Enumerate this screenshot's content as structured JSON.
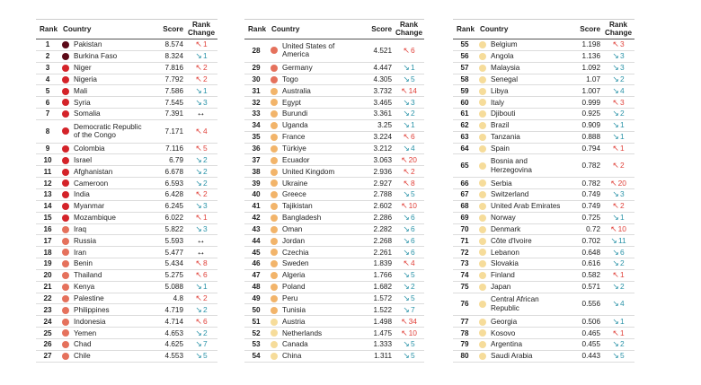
{
  "headers": {
    "rank": "Rank",
    "country": "Country",
    "score": "Score",
    "change_line1": "Rank",
    "change_line2": "Change"
  },
  "colors": {
    "c1": "#5c0a18",
    "c2": "#d42329",
    "c3": "#e5715c",
    "c4": "#f2b46a",
    "c5": "#f6dc9a",
    "up": "#e0423b",
    "down": "#2a93a8"
  },
  "columns": [
    [
      {
        "rank": "1",
        "country": "Pakistan",
        "score": "8.574",
        "dir": "up",
        "change": "1",
        "color": "#5c0a18"
      },
      {
        "rank": "2",
        "country": "Burkina Faso",
        "score": "8.324",
        "dir": "down",
        "change": "1",
        "color": "#5c0a18"
      },
      {
        "rank": "3",
        "country": "Niger",
        "score": "7.816",
        "dir": "up",
        "change": "2",
        "color": "#d42329"
      },
      {
        "rank": "4",
        "country": "Nigeria",
        "score": "7.792",
        "dir": "up",
        "change": "2",
        "color": "#d42329"
      },
      {
        "rank": "5",
        "country": "Mali",
        "score": "7.586",
        "dir": "down",
        "change": "1",
        "color": "#d42329"
      },
      {
        "rank": "6",
        "country": "Syria",
        "score": "7.545",
        "dir": "down",
        "change": "3",
        "color": "#d42329"
      },
      {
        "rank": "7",
        "country": "Somalia",
        "score": "7.391",
        "dir": "same",
        "change": "",
        "color": "#d42329"
      },
      {
        "rank": "8",
        "country": "Democratic Republic of the Congo",
        "score": "7.171",
        "dir": "up",
        "change": "4",
        "color": "#d42329",
        "tall": true
      },
      {
        "rank": "9",
        "country": "Colombia",
        "score": "7.116",
        "dir": "up",
        "change": "5",
        "color": "#d42329"
      },
      {
        "rank": "10",
        "country": "Israel",
        "score": "6.79",
        "dir": "down",
        "change": "2",
        "color": "#d42329"
      },
      {
        "rank": "11",
        "country": "Afghanistan",
        "score": "6.678",
        "dir": "down",
        "change": "2",
        "color": "#d42329"
      },
      {
        "rank": "12",
        "country": "Cameroon",
        "score": "6.593",
        "dir": "down",
        "change": "2",
        "color": "#d42329"
      },
      {
        "rank": "13",
        "country": "India",
        "score": "6.428",
        "dir": "up",
        "change": "2",
        "color": "#d42329"
      },
      {
        "rank": "14",
        "country": "Myanmar",
        "score": "6.245",
        "dir": "down",
        "change": "3",
        "color": "#d42329"
      },
      {
        "rank": "15",
        "country": "Mozambique",
        "score": "6.022",
        "dir": "up",
        "change": "1",
        "color": "#d42329"
      },
      {
        "rank": "16",
        "country": "Iraq",
        "score": "5.822",
        "dir": "down",
        "change": "3",
        "color": "#e5715c"
      },
      {
        "rank": "17",
        "country": "Russia",
        "score": "5.593",
        "dir": "same",
        "change": "",
        "color": "#e5715c"
      },
      {
        "rank": "18",
        "country": "Iran",
        "score": "5.477",
        "dir": "same",
        "change": "",
        "color": "#e5715c"
      },
      {
        "rank": "19",
        "country": "Benin",
        "score": "5.434",
        "dir": "up",
        "change": "8",
        "color": "#e5715c"
      },
      {
        "rank": "20",
        "country": "Thailand",
        "score": "5.275",
        "dir": "up",
        "change": "6",
        "color": "#e5715c"
      },
      {
        "rank": "21",
        "country": "Kenya",
        "score": "5.088",
        "dir": "down",
        "change": "1",
        "color": "#e5715c"
      },
      {
        "rank": "22",
        "country": "Palestine",
        "score": "4.8",
        "dir": "up",
        "change": "2",
        "color": "#e5715c"
      },
      {
        "rank": "23",
        "country": "Philippines",
        "score": "4.719",
        "dir": "down",
        "change": "2",
        "color": "#e5715c"
      },
      {
        "rank": "24",
        "country": "Indonesia",
        "score": "4.714",
        "dir": "up",
        "change": "6",
        "color": "#e5715c"
      },
      {
        "rank": "25",
        "country": "Yemen",
        "score": "4.653",
        "dir": "down",
        "change": "2",
        "color": "#e5715c"
      },
      {
        "rank": "26",
        "country": "Chad",
        "score": "4.625",
        "dir": "down",
        "change": "7",
        "color": "#e5715c"
      },
      {
        "rank": "27",
        "country": "Chile",
        "score": "4.553",
        "dir": "down",
        "change": "5",
        "color": "#e5715c"
      }
    ],
    [
      {
        "rank": "28",
        "country": "United States of America",
        "score": "4.521",
        "dir": "up",
        "change": "6",
        "color": "#e5715c",
        "tall": true
      },
      {
        "rank": "29",
        "country": "Germany",
        "score": "4.447",
        "dir": "down",
        "change": "1",
        "color": "#e5715c"
      },
      {
        "rank": "30",
        "country": "Togo",
        "score": "4.305",
        "dir": "down",
        "change": "5",
        "color": "#e5715c"
      },
      {
        "rank": "31",
        "country": "Australia",
        "score": "3.732",
        "dir": "up",
        "change": "14",
        "color": "#f2b46a"
      },
      {
        "rank": "32",
        "country": "Egypt",
        "score": "3.465",
        "dir": "down",
        "change": "3",
        "color": "#f2b46a"
      },
      {
        "rank": "33",
        "country": "Burundi",
        "score": "3.361",
        "dir": "down",
        "change": "2",
        "color": "#f2b46a"
      },
      {
        "rank": "34",
        "country": "Uganda",
        "score": "3.25",
        "dir": "down",
        "change": "1",
        "color": "#f2b46a"
      },
      {
        "rank": "35",
        "country": "France",
        "score": "3.224",
        "dir": "up",
        "change": "6",
        "color": "#f2b46a"
      },
      {
        "rank": "36",
        "country": "Türkiye",
        "score": "3.212",
        "dir": "down",
        "change": "4",
        "color": "#f2b46a"
      },
      {
        "rank": "37",
        "country": "Ecuador",
        "score": "3.063",
        "dir": "up",
        "change": "20",
        "color": "#f2b46a"
      },
      {
        "rank": "38",
        "country": "United Kingdom",
        "score": "2.936",
        "dir": "up",
        "change": "2",
        "color": "#f2b46a"
      },
      {
        "rank": "39",
        "country": "Ukraine",
        "score": "2.927",
        "dir": "up",
        "change": "8",
        "color": "#f2b46a"
      },
      {
        "rank": "40",
        "country": "Greece",
        "score": "2.788",
        "dir": "down",
        "change": "5",
        "color": "#f2b46a"
      },
      {
        "rank": "41",
        "country": "Tajikistan",
        "score": "2.602",
        "dir": "up",
        "change": "10",
        "color": "#f2b46a"
      },
      {
        "rank": "42",
        "country": "Bangladesh",
        "score": "2.286",
        "dir": "down",
        "change": "6",
        "color": "#f2b46a"
      },
      {
        "rank": "43",
        "country": "Oman",
        "score": "2.282",
        "dir": "down",
        "change": "6",
        "color": "#f2b46a"
      },
      {
        "rank": "44",
        "country": "Jordan",
        "score": "2.268",
        "dir": "down",
        "change": "6",
        "color": "#f2b46a"
      },
      {
        "rank": "45",
        "country": "Czechia",
        "score": "2.261",
        "dir": "down",
        "change": "6",
        "color": "#f2b46a"
      },
      {
        "rank": "46",
        "country": "Sweden",
        "score": "1.839",
        "dir": "up",
        "change": "4",
        "color": "#f2b46a"
      },
      {
        "rank": "47",
        "country": "Algeria",
        "score": "1.766",
        "dir": "down",
        "change": "5",
        "color": "#f2b46a"
      },
      {
        "rank": "48",
        "country": "Poland",
        "score": "1.682",
        "dir": "down",
        "change": "2",
        "color": "#f2b46a"
      },
      {
        "rank": "49",
        "country": "Peru",
        "score": "1.572",
        "dir": "down",
        "change": "5",
        "color": "#f2b46a"
      },
      {
        "rank": "50",
        "country": "Tunisia",
        "score": "1.522",
        "dir": "down",
        "change": "7",
        "color": "#f2b46a"
      },
      {
        "rank": "51",
        "country": "Austria",
        "score": "1.498",
        "dir": "up",
        "change": "34",
        "color": "#f6dc9a"
      },
      {
        "rank": "52",
        "country": "Netherlands",
        "score": "1.475",
        "dir": "up",
        "change": "10",
        "color": "#f6dc9a"
      },
      {
        "rank": "53",
        "country": "Canada",
        "score": "1.333",
        "dir": "down",
        "change": "5",
        "color": "#f6dc9a"
      },
      {
        "rank": "54",
        "country": "China",
        "score": "1.311",
        "dir": "down",
        "change": "5",
        "color": "#f6dc9a"
      }
    ],
    [
      {
        "rank": "55",
        "country": "Belgium",
        "score": "1.198",
        "dir": "up",
        "change": "3",
        "color": "#f6dc9a"
      },
      {
        "rank": "56",
        "country": "Angola",
        "score": "1.136",
        "dir": "down",
        "change": "3",
        "color": "#f6dc9a"
      },
      {
        "rank": "57",
        "country": "Malaysia",
        "score": "1.092",
        "dir": "down",
        "change": "3",
        "color": "#f6dc9a"
      },
      {
        "rank": "58",
        "country": "Senegal",
        "score": "1.07",
        "dir": "down",
        "change": "2",
        "color": "#f6dc9a"
      },
      {
        "rank": "59",
        "country": "Libya",
        "score": "1.007",
        "dir": "down",
        "change": "4",
        "color": "#f6dc9a"
      },
      {
        "rank": "60",
        "country": "Italy",
        "score": "0.999",
        "dir": "up",
        "change": "3",
        "color": "#f6dc9a"
      },
      {
        "rank": "61",
        "country": "Djibouti",
        "score": "0.925",
        "dir": "down",
        "change": "2",
        "color": "#f6dc9a"
      },
      {
        "rank": "62",
        "country": "Brazil",
        "score": "0.909",
        "dir": "down",
        "change": "1",
        "color": "#f6dc9a"
      },
      {
        "rank": "63",
        "country": "Tanzania",
        "score": "0.888",
        "dir": "down",
        "change": "1",
        "color": "#f6dc9a"
      },
      {
        "rank": "64",
        "country": "Spain",
        "score": "0.794",
        "dir": "up",
        "change": "1",
        "color": "#f6dc9a"
      },
      {
        "rank": "65",
        "country": "Bosnia and Herzegovina",
        "score": "0.782",
        "dir": "up",
        "change": "2",
        "color": "#f6dc9a",
        "tall": true
      },
      {
        "rank": "66",
        "country": "Serbia",
        "score": "0.782",
        "dir": "up",
        "change": "20",
        "color": "#f6dc9a"
      },
      {
        "rank": "67",
        "country": "Switzerland",
        "score": "0.749",
        "dir": "down",
        "change": "3",
        "color": "#f6dc9a"
      },
      {
        "rank": "68",
        "country": "United Arab Emirates",
        "score": "0.749",
        "dir": "up",
        "change": "2",
        "color": "#f6dc9a"
      },
      {
        "rank": "69",
        "country": "Norway",
        "score": "0.725",
        "dir": "down",
        "change": "1",
        "color": "#f6dc9a"
      },
      {
        "rank": "70",
        "country": "Denmark",
        "score": "0.72",
        "dir": "up",
        "change": "10",
        "color": "#f6dc9a"
      },
      {
        "rank": "71",
        "country": "Côte d'Ivoire",
        "score": "0.702",
        "dir": "down",
        "change": "11",
        "color": "#f6dc9a"
      },
      {
        "rank": "72",
        "country": "Lebanon",
        "score": "0.648",
        "dir": "down",
        "change": "6",
        "color": "#f6dc9a"
      },
      {
        "rank": "73",
        "country": "Slovakia",
        "score": "0.616",
        "dir": "down",
        "change": "2",
        "color": "#f6dc9a"
      },
      {
        "rank": "74",
        "country": "Finland",
        "score": "0.582",
        "dir": "up",
        "change": "1",
        "color": "#f6dc9a"
      },
      {
        "rank": "75",
        "country": "Japan",
        "score": "0.571",
        "dir": "down",
        "change": "2",
        "color": "#f6dc9a"
      },
      {
        "rank": "76",
        "country": "Central African Republic",
        "score": "0.556",
        "dir": "down",
        "change": "4",
        "color": "#f6dc9a",
        "tall": true
      },
      {
        "rank": "77",
        "country": "Georgia",
        "score": "0.506",
        "dir": "down",
        "change": "1",
        "color": "#f6dc9a"
      },
      {
        "rank": "78",
        "country": "Kosovo",
        "score": "0.465",
        "dir": "up",
        "change": "1",
        "color": "#f6dc9a"
      },
      {
        "rank": "79",
        "country": "Argentina",
        "score": "0.455",
        "dir": "down",
        "change": "2",
        "color": "#f6dc9a"
      },
      {
        "rank": "80",
        "country": "Saudi Arabia",
        "score": "0.443",
        "dir": "down",
        "change": "5",
        "color": "#f6dc9a"
      }
    ]
  ]
}
